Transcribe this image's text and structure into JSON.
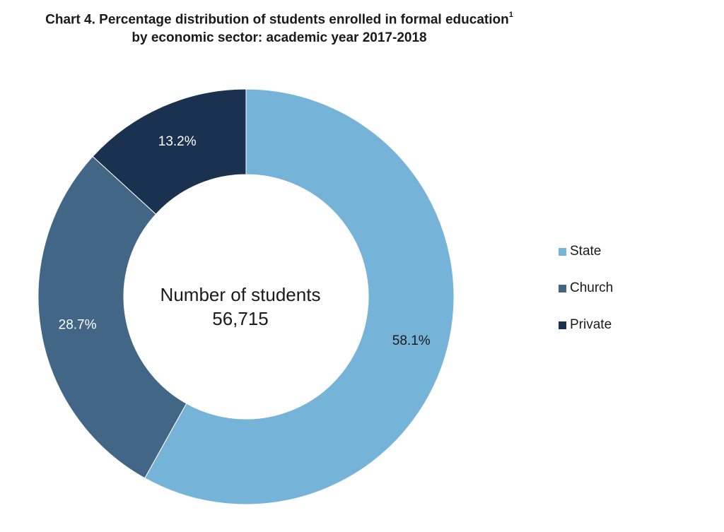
{
  "chart_data": {
    "type": "pie",
    "title_line1": "Chart 4. Percentage distribution of students enrolled in formal education",
    "title_footnote": "1",
    "title_line2": "by economic sector: academic year 2017-2018",
    "center_label": "Number of students",
    "center_value": "56,715",
    "slices": [
      {
        "name": "State",
        "value": 58.1,
        "label": "58.1%",
        "color": "#76b3d9"
      },
      {
        "name": "Church",
        "value": 28.7,
        "label": "28.7%",
        "color": "#426686"
      },
      {
        "name": "Private",
        "value": 13.2,
        "label": "13.2%",
        "color": "#1a314f"
      }
    ],
    "legend_placement": "right",
    "label_color": "#ffffff",
    "dark_label_color": "#1a1a1a"
  }
}
